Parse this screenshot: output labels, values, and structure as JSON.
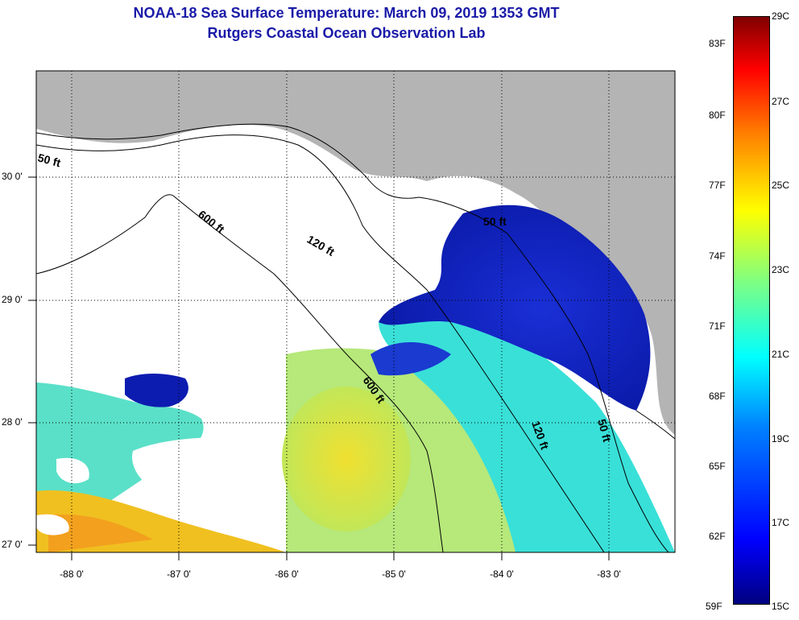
{
  "header": {
    "title": "NOAA-18 Sea Surface Temperature:  March 09, 2019 1353 GMT",
    "subtitle": "Rutgers Coastal Ocean Observation Lab"
  },
  "map": {
    "lat_labels": [
      "30 0'",
      "29 0'",
      "28 0'",
      "27 0'"
    ],
    "lon_labels": [
      "-88 0'",
      "-87 0'",
      "-86 0'",
      "-85 0'",
      "-84 0'",
      "-83 0'"
    ],
    "contours": {
      "c50": "50 ft",
      "c120": "120 ft",
      "c600": "600 ft"
    },
    "land_color": "#b4b4b4",
    "cloud_color": "#ffffff"
  },
  "colorbar": {
    "fahrenheit_labels": [
      "83F",
      "80F",
      "77F",
      "74F",
      "71F",
      "68F",
      "65F",
      "62F",
      "59F"
    ],
    "celsius_labels": [
      "29C",
      "27C",
      "25C",
      "23C",
      "21C",
      "19C",
      "17C",
      "15C"
    ],
    "range_c": [
      15,
      29
    ],
    "stops": [
      "#00007f",
      "#0000ff",
      "#0080ff",
      "#00ffff",
      "#80ff80",
      "#ffff00",
      "#ff8000",
      "#ff0000",
      "#7f0000"
    ]
  }
}
